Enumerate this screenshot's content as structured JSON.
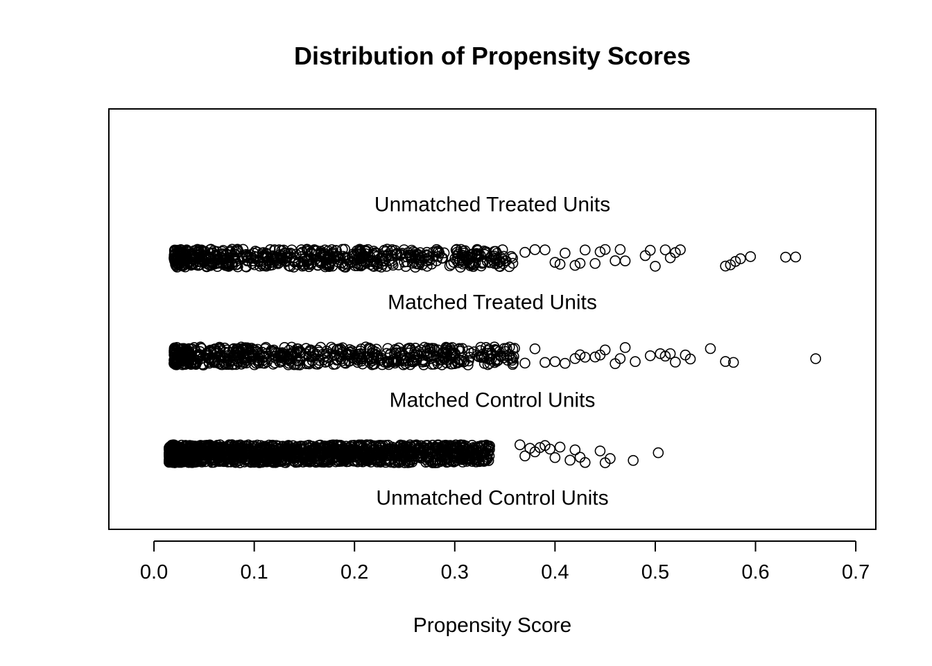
{
  "chart_data": {
    "type": "scatter",
    "title": "Distribution of Propensity Scores",
    "xlabel": "Propensity Score",
    "ylabel": "",
    "xlim": [
      -0.045,
      0.72
    ],
    "ylim": [
      0.5,
      4.8
    ],
    "x_ticks": [
      0.0,
      0.1,
      0.2,
      0.3,
      0.4,
      0.5,
      0.6,
      0.7
    ],
    "x_tick_labels": [
      "0.0",
      "0.1",
      "0.2",
      "0.3",
      "0.4",
      "0.5",
      "0.6",
      "0.7"
    ],
    "grid": false,
    "jitter": true,
    "groups": [
      {
        "name": "Unmatched Treated Units",
        "y": 4,
        "dense_range": [],
        "points": []
      },
      {
        "name": "Matched Treated Units",
        "y": 3,
        "dense_range": [
          0.02,
          0.36
        ],
        "points": [
          0.37,
          0.38,
          0.39,
          0.4,
          0.405,
          0.41,
          0.42,
          0.425,
          0.43,
          0.44,
          0.445,
          0.45,
          0.46,
          0.465,
          0.47,
          0.49,
          0.495,
          0.5,
          0.51,
          0.515,
          0.52,
          0.525,
          0.57,
          0.575,
          0.58,
          0.585,
          0.595,
          0.63,
          0.64
        ]
      },
      {
        "name": "Matched Control Units",
        "y": 2,
        "dense_range": [
          0.02,
          0.36
        ],
        "points": [
          0.37,
          0.38,
          0.39,
          0.4,
          0.41,
          0.42,
          0.425,
          0.43,
          0.44,
          0.445,
          0.45,
          0.46,
          0.465,
          0.47,
          0.48,
          0.495,
          0.505,
          0.51,
          0.515,
          0.52,
          0.53,
          0.535,
          0.555,
          0.57,
          0.578,
          0.66
        ]
      },
      {
        "name": "Unmatched Control Units",
        "y": 1,
        "dense_range": [
          0.015,
          0.335
        ],
        "points": [
          0.365,
          0.37,
          0.375,
          0.38,
          0.385,
          0.39,
          0.395,
          0.4,
          0.405,
          0.415,
          0.42,
          0.425,
          0.43,
          0.445,
          0.45,
          0.455,
          0.478,
          0.503
        ]
      }
    ]
  }
}
